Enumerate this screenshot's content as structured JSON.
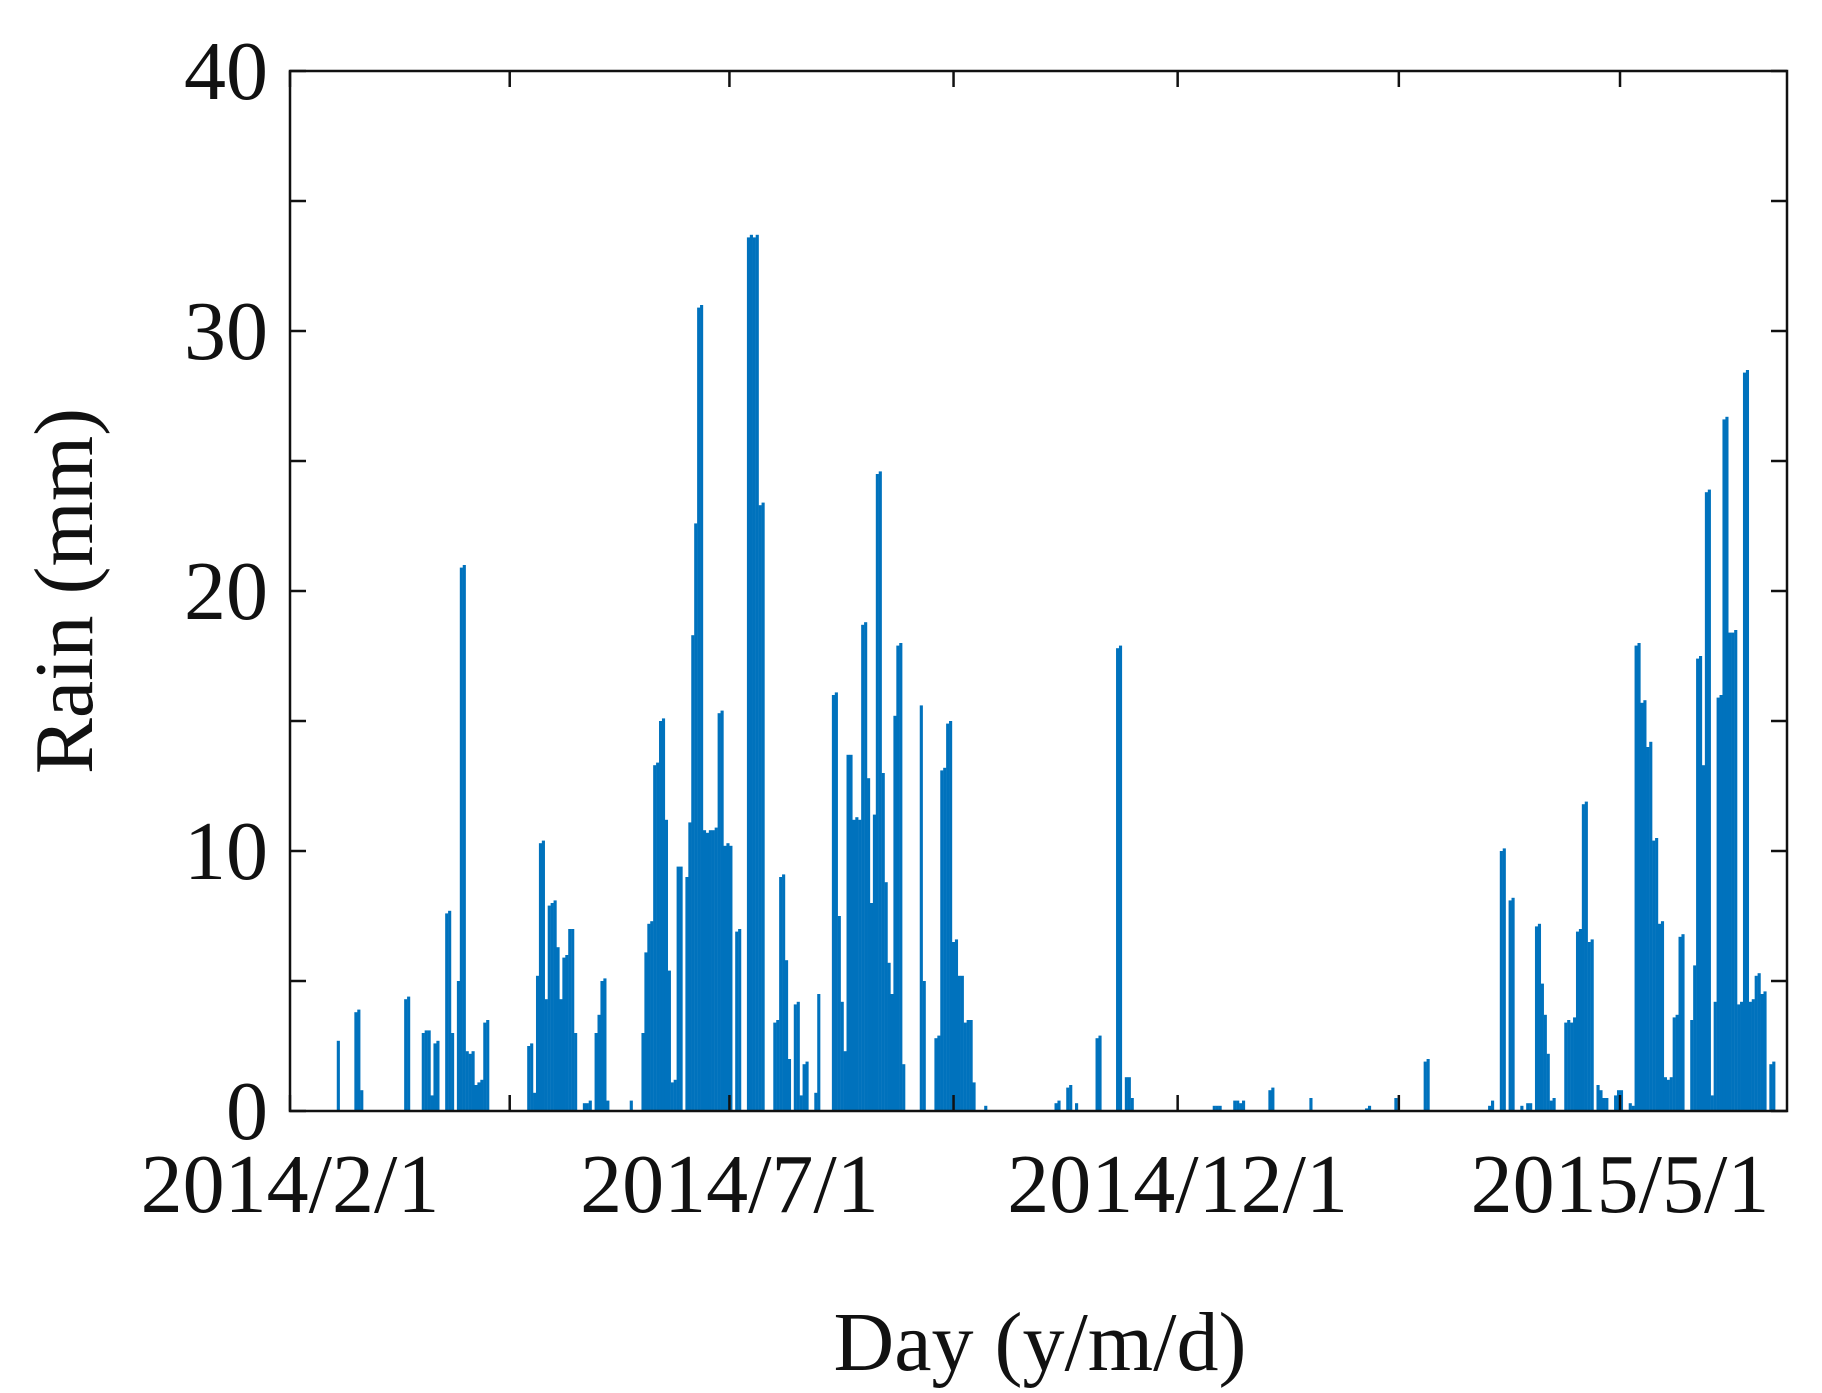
{
  "chart_data": {
    "type": "bar",
    "title": "",
    "xlabel": "Day (y/m/d)",
    "ylabel": "Rain (mm)",
    "ylim": [
      0,
      40
    ],
    "yticks": [
      0,
      10,
      20,
      30,
      40
    ],
    "xlim": [
      0,
      511
    ],
    "xticks": [
      {
        "day": 0,
        "label": "2014/2/1"
      },
      {
        "day": 150,
        "label": "2014/7/1"
      },
      {
        "day": 303,
        "label": "2014/12/1"
      },
      {
        "day": 454,
        "label": "2015/5/1"
      }
    ],
    "grid": false,
    "series": [
      {
        "name": "Rain",
        "color": "#0072BD",
        "points": [
          [
            16,
            2.7
          ],
          [
            22,
            3.8
          ],
          [
            23,
            3.9
          ],
          [
            24,
            0.8
          ],
          [
            39,
            4.3
          ],
          [
            40,
            4.4
          ],
          [
            45,
            3.0
          ],
          [
            46,
            3.1
          ],
          [
            47,
            3.1
          ],
          [
            48,
            0.6
          ],
          [
            49,
            2.6
          ],
          [
            50,
            2.7
          ],
          [
            53,
            7.6
          ],
          [
            54,
            7.7
          ],
          [
            55,
            3.0
          ],
          [
            57,
            5.0
          ],
          [
            58,
            20.9
          ],
          [
            59,
            21.0
          ],
          [
            60,
            2.3
          ],
          [
            61,
            2.2
          ],
          [
            62,
            2.3
          ],
          [
            63,
            1.0
          ],
          [
            64,
            1.1
          ],
          [
            65,
            1.2
          ],
          [
            66,
            3.4
          ],
          [
            67,
            3.5
          ],
          [
            81,
            2.5
          ],
          [
            82,
            2.6
          ],
          [
            83,
            0.7
          ],
          [
            84,
            5.2
          ],
          [
            85,
            10.3
          ],
          [
            86,
            10.4
          ],
          [
            87,
            4.3
          ],
          [
            88,
            7.9
          ],
          [
            89,
            8.0
          ],
          [
            90,
            8.1
          ],
          [
            91,
            6.3
          ],
          [
            92,
            4.3
          ],
          [
            93,
            5.9
          ],
          [
            94,
            6.0
          ],
          [
            95,
            7.0
          ],
          [
            96,
            7.0
          ],
          [
            97,
            3.0
          ],
          [
            100,
            0.3
          ],
          [
            101,
            0.3
          ],
          [
            102,
            0.4
          ],
          [
            104,
            3.0
          ],
          [
            105,
            3.7
          ],
          [
            106,
            5.0
          ],
          [
            107,
            5.1
          ],
          [
            108,
            0.4
          ],
          [
            116,
            0.4
          ],
          [
            120,
            3.0
          ],
          [
            121,
            6.1
          ],
          [
            122,
            7.2
          ],
          [
            123,
            7.3
          ],
          [
            124,
            13.3
          ],
          [
            125,
            13.4
          ],
          [
            126,
            15.0
          ],
          [
            127,
            15.1
          ],
          [
            128,
            11.2
          ],
          [
            129,
            5.4
          ],
          [
            130,
            1.1
          ],
          [
            131,
            1.2
          ],
          [
            132,
            9.4
          ],
          [
            133,
            9.4
          ],
          [
            135,
            9.0
          ],
          [
            136,
            11.1
          ],
          [
            137,
            18.3
          ],
          [
            138,
            22.6
          ],
          [
            139,
            30.9
          ],
          [
            140,
            31.0
          ],
          [
            141,
            10.8
          ],
          [
            142,
            10.7
          ],
          [
            143,
            10.8
          ],
          [
            144,
            10.8
          ],
          [
            145,
            10.9
          ],
          [
            146,
            15.3
          ],
          [
            147,
            15.4
          ],
          [
            148,
            10.2
          ],
          [
            149,
            10.3
          ],
          [
            150,
            10.2
          ],
          [
            152,
            6.9
          ],
          [
            153,
            7.0
          ],
          [
            156,
            33.6
          ],
          [
            157,
            33.7
          ],
          [
            158,
            33.6
          ],
          [
            159,
            33.7
          ],
          [
            160,
            23.3
          ],
          [
            161,
            23.4
          ],
          [
            165,
            3.4
          ],
          [
            166,
            3.5
          ],
          [
            167,
            9.0
          ],
          [
            168,
            9.1
          ],
          [
            169,
            5.8
          ],
          [
            170,
            2.0
          ],
          [
            172,
            4.1
          ],
          [
            173,
            4.2
          ],
          [
            174,
            0.6
          ],
          [
            175,
            1.8
          ],
          [
            176,
            1.9
          ],
          [
            179,
            0.7
          ],
          [
            180,
            4.5
          ],
          [
            185,
            16.0
          ],
          [
            186,
            16.1
          ],
          [
            187,
            7.5
          ],
          [
            188,
            4.2
          ],
          [
            189,
            2.3
          ],
          [
            190,
            13.7
          ],
          [
            191,
            13.7
          ],
          [
            192,
            11.2
          ],
          [
            193,
            11.3
          ],
          [
            194,
            11.2
          ],
          [
            195,
            18.7
          ],
          [
            196,
            18.8
          ],
          [
            197,
            12.8
          ],
          [
            198,
            8.0
          ],
          [
            199,
            11.4
          ],
          [
            200,
            24.5
          ],
          [
            201,
            24.6
          ],
          [
            202,
            13.0
          ],
          [
            203,
            8.8
          ],
          [
            204,
            5.7
          ],
          [
            205,
            4.5
          ],
          [
            206,
            15.2
          ],
          [
            207,
            17.9
          ],
          [
            208,
            18.0
          ],
          [
            209,
            1.8
          ],
          [
            215,
            15.6
          ],
          [
            216,
            5.0
          ],
          [
            220,
            2.8
          ],
          [
            221,
            2.9
          ],
          [
            222,
            13.1
          ],
          [
            223,
            13.2
          ],
          [
            224,
            14.9
          ],
          [
            225,
            15.0
          ],
          [
            226,
            6.5
          ],
          [
            227,
            6.6
          ],
          [
            228,
            5.2
          ],
          [
            229,
            5.2
          ],
          [
            230,
            3.4
          ],
          [
            231,
            3.5
          ],
          [
            232,
            3.5
          ],
          [
            233,
            1.1
          ],
          [
            237,
            0.2
          ],
          [
            261,
            0.3
          ],
          [
            262,
            0.4
          ],
          [
            265,
            0.9
          ],
          [
            266,
            1.0
          ],
          [
            268,
            0.3
          ],
          [
            275,
            2.8
          ],
          [
            276,
            2.9
          ],
          [
            282,
            17.8
          ],
          [
            283,
            17.9
          ],
          [
            285,
            1.3
          ],
          [
            286,
            1.3
          ],
          [
            287,
            0.5
          ],
          [
            315,
            0.2
          ],
          [
            316,
            0.2
          ],
          [
            317,
            0.2
          ],
          [
            322,
            0.4
          ],
          [
            323,
            0.4
          ],
          [
            324,
            0.3
          ],
          [
            325,
            0.4
          ],
          [
            334,
            0.8
          ],
          [
            335,
            0.9
          ],
          [
            348,
            0.5
          ],
          [
            367,
            0.1
          ],
          [
            368,
            0.2
          ],
          [
            377,
            0.5
          ],
          [
            387,
            1.9
          ],
          [
            388,
            2.0
          ],
          [
            409,
            0.2
          ],
          [
            410,
            0.4
          ],
          [
            413,
            10.0
          ],
          [
            414,
            10.1
          ],
          [
            416,
            8.1
          ],
          [
            417,
            8.2
          ],
          [
            420,
            0.2
          ],
          [
            422,
            0.3
          ],
          [
            423,
            0.3
          ],
          [
            425,
            7.1
          ],
          [
            426,
            7.2
          ],
          [
            427,
            4.9
          ],
          [
            428,
            3.7
          ],
          [
            429,
            2.2
          ],
          [
            430,
            0.4
          ],
          [
            431,
            0.5
          ],
          [
            435,
            3.4
          ],
          [
            436,
            3.5
          ],
          [
            437,
            3.4
          ],
          [
            438,
            3.6
          ],
          [
            439,
            6.9
          ],
          [
            440,
            7.0
          ],
          [
            441,
            11.8
          ],
          [
            442,
            11.9
          ],
          [
            443,
            6.5
          ],
          [
            444,
            6.6
          ],
          [
            446,
            1.0
          ],
          [
            447,
            0.8
          ],
          [
            448,
            0.5
          ],
          [
            449,
            0.5
          ],
          [
            452,
            0.6
          ],
          [
            453,
            0.8
          ],
          [
            454,
            0.8
          ],
          [
            457,
            0.3
          ],
          [
            458,
            0.2
          ],
          [
            459,
            17.9
          ],
          [
            460,
            18.0
          ],
          [
            461,
            15.7
          ],
          [
            462,
            15.8
          ],
          [
            463,
            14.0
          ],
          [
            464,
            14.2
          ],
          [
            465,
            10.4
          ],
          [
            466,
            10.5
          ],
          [
            467,
            7.2
          ],
          [
            468,
            7.3
          ],
          [
            469,
            1.3
          ],
          [
            470,
            1.2
          ],
          [
            471,
            1.3
          ],
          [
            472,
            3.6
          ],
          [
            473,
            3.7
          ],
          [
            474,
            6.7
          ],
          [
            475,
            6.8
          ],
          [
            478,
            3.5
          ],
          [
            479,
            5.6
          ],
          [
            480,
            17.4
          ],
          [
            481,
            17.5
          ],
          [
            482,
            13.3
          ],
          [
            483,
            23.8
          ],
          [
            484,
            23.9
          ],
          [
            485,
            0.6
          ],
          [
            486,
            4.2
          ],
          [
            487,
            15.9
          ],
          [
            488,
            16.0
          ],
          [
            489,
            26.6
          ],
          [
            490,
            26.7
          ],
          [
            491,
            18.4
          ],
          [
            492,
            18.4
          ],
          [
            493,
            18.5
          ],
          [
            494,
            4.1
          ],
          [
            495,
            4.2
          ],
          [
            496,
            28.4
          ],
          [
            497,
            28.5
          ],
          [
            498,
            4.2
          ],
          [
            499,
            4.3
          ],
          [
            500,
            5.2
          ],
          [
            501,
            5.3
          ],
          [
            502,
            4.5
          ],
          [
            503,
            4.6
          ],
          [
            505,
            1.8
          ],
          [
            506,
            1.9
          ]
        ]
      }
    ]
  }
}
